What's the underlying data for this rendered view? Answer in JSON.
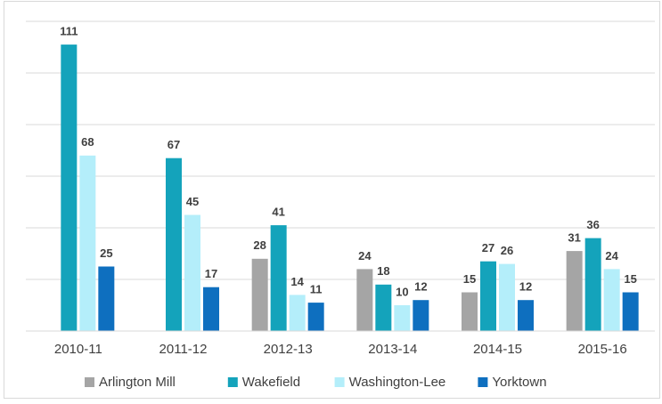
{
  "chart_data": {
    "type": "bar",
    "categories": [
      "2010-11",
      "2011-12",
      "2012-13",
      "2013-14",
      "2014-15",
      "2015-16"
    ],
    "series": [
      {
        "name": "Arlington Mill",
        "color": "#a5a5a5",
        "values": [
          null,
          null,
          28,
          24,
          15,
          31
        ]
      },
      {
        "name": "Wakefield",
        "color": "#14a3bb",
        "values": [
          111,
          67,
          41,
          18,
          27,
          36
        ]
      },
      {
        "name": "Washington-Lee",
        "color": "#b4eefa",
        "values": [
          68,
          45,
          14,
          10,
          26,
          24
        ]
      },
      {
        "name": "Yorktown",
        "color": "#0e6fbf",
        "values": [
          25,
          17,
          11,
          12,
          12,
          15
        ]
      }
    ],
    "ylim": [
      0,
      120
    ],
    "yticks": [
      0,
      20,
      40,
      60,
      80,
      100,
      120
    ],
    "grid": true,
    "legend": "bottom"
  }
}
